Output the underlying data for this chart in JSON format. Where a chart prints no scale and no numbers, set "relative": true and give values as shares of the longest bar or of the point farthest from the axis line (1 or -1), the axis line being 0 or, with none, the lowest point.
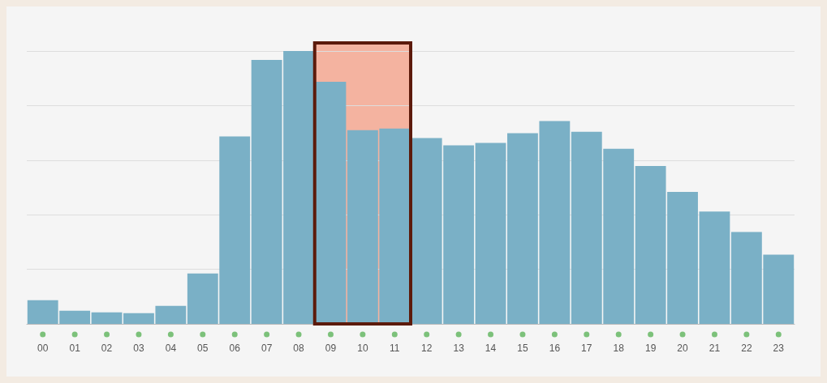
{
  "chart_data": {
    "type": "bar",
    "relative": true,
    "categories": [
      "00",
      "01",
      "02",
      "03",
      "04",
      "05",
      "06",
      "07",
      "08",
      "09",
      "10",
      "11",
      "12",
      "13",
      "14",
      "15",
      "16",
      "17",
      "18",
      "19",
      "20",
      "21",
      "22",
      "23"
    ],
    "values": [
      0.087,
      0.048,
      0.042,
      0.039,
      0.066,
      0.185,
      0.687,
      0.967,
      1,
      0.887,
      0.71,
      0.716,
      0.681,
      0.654,
      0.663,
      0.699,
      0.743,
      0.704,
      0.642,
      0.579,
      0.484,
      0.412,
      0.337,
      0.254
    ],
    "color": "#7ab0c6",
    "grid": "y",
    "bands": [
      {
        "axis": "x",
        "from": "09",
        "to": "11",
        "color": "#f4b3a0"
      }
    ]
  }
}
